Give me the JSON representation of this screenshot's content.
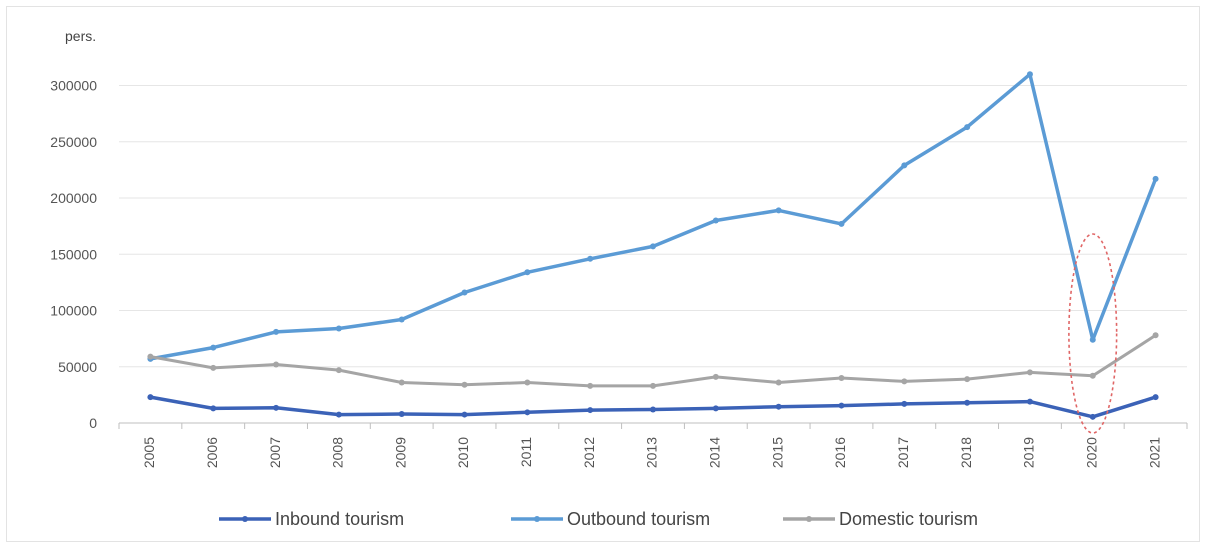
{
  "chart_data": {
    "type": "line",
    "title": "",
    "xlabel": "",
    "ylabel": "pers.",
    "ylim": [
      0,
      320000
    ],
    "yticks": [
      0,
      50000,
      100000,
      150000,
      200000,
      250000,
      300000
    ],
    "yticklabels": [
      "0",
      "50000",
      "100000",
      "150000",
      "200000",
      "250000",
      "300000"
    ],
    "categories": [
      "2005",
      "2006",
      "2007",
      "2008",
      "2009",
      "2010",
      "2011",
      "2012",
      "2013",
      "2014",
      "2015",
      "2016",
      "2017",
      "2018",
      "2019",
      "2020",
      "2021"
    ],
    "grid": "horizontal",
    "legend": "bottom",
    "series": [
      {
        "name": "Inbound tourism",
        "color": "#3b62b7",
        "values": [
          23000,
          13000,
          13500,
          7500,
          8000,
          7500,
          9500,
          11500,
          12000,
          13000,
          14500,
          15500,
          17000,
          18000,
          19000,
          5500,
          23000
        ]
      },
      {
        "name": "Outbound tourism",
        "color": "#5b9bd5",
        "values": [
          57000,
          67000,
          81000,
          84000,
          92000,
          116000,
          134000,
          146000,
          157000,
          180000,
          189000,
          177000,
          229000,
          263000,
          310000,
          74000,
          217000
        ]
      },
      {
        "name": "Domestic tourism",
        "color": "#a5a5a5",
        "values": [
          59000,
          49000,
          52000,
          47000,
          36000,
          34000,
          36000,
          33000,
          33000,
          41000,
          36000,
          40000,
          37000,
          39000,
          45000,
          42000,
          78000
        ]
      }
    ],
    "annotation": {
      "type": "dashed-ellipse",
      "category": "2020",
      "y_from": 0,
      "y_to": 168000,
      "color": "#e06666"
    }
  }
}
